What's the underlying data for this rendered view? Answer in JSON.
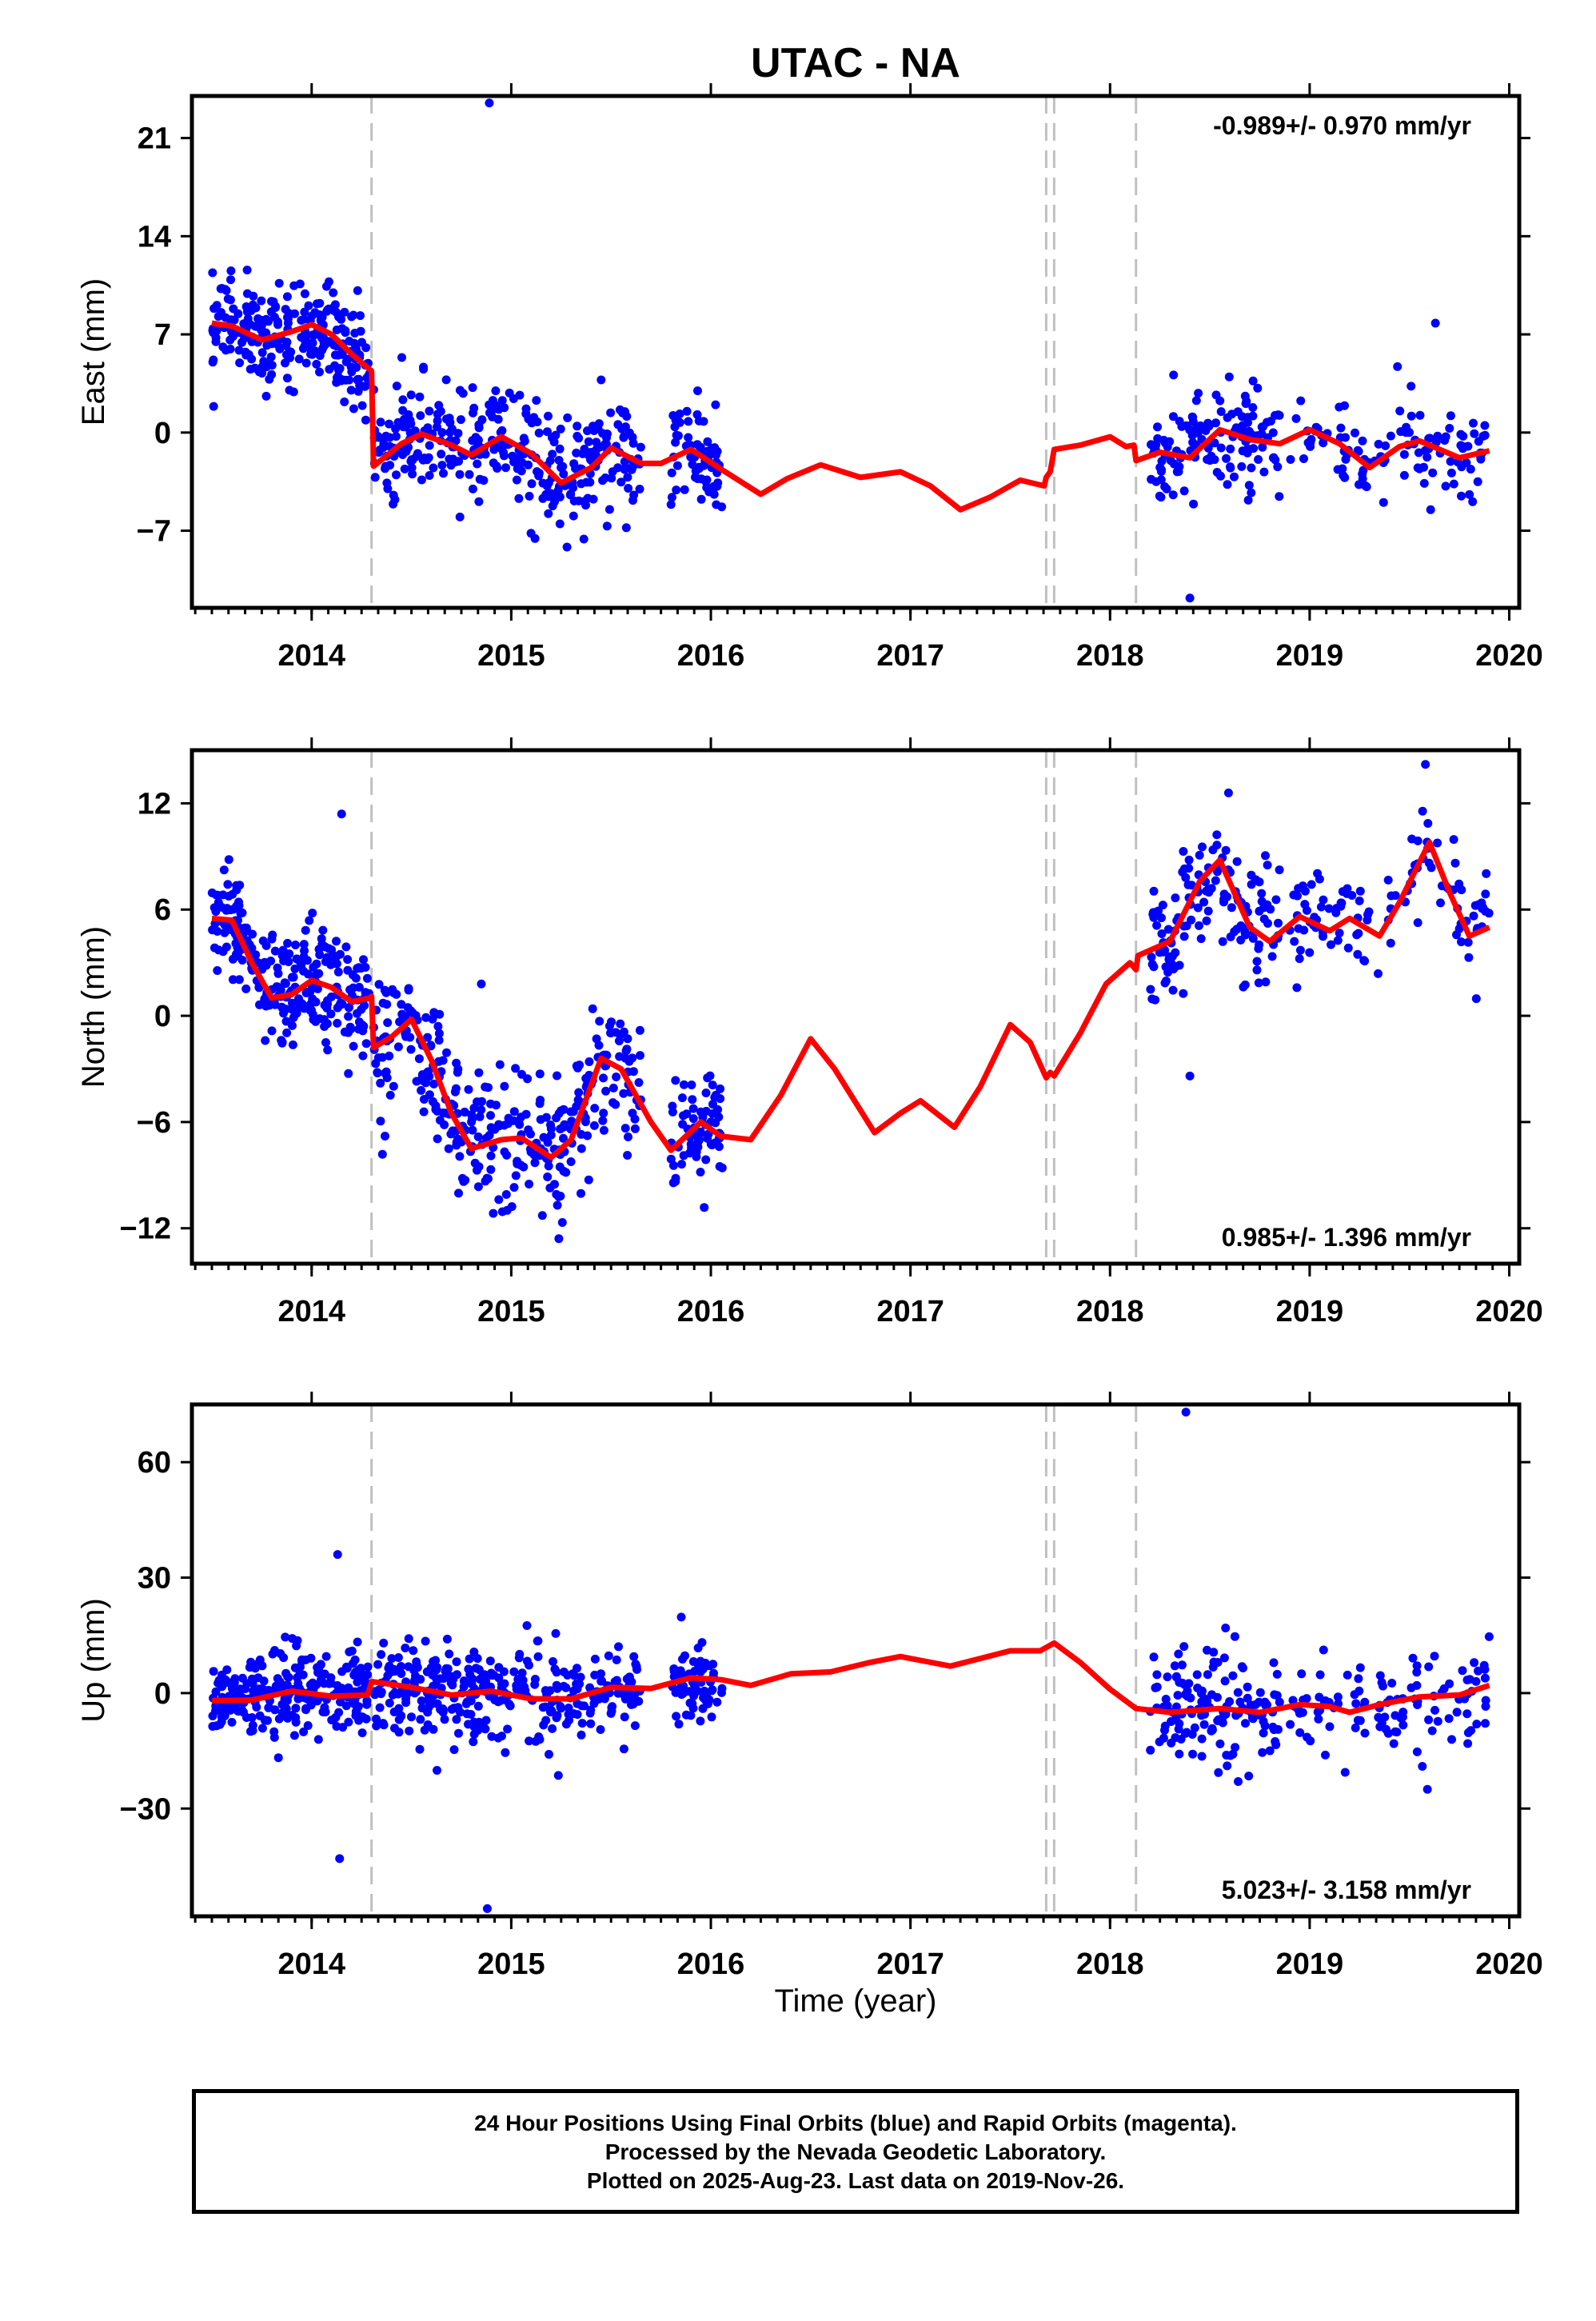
{
  "title": "UTAC - NA",
  "xlabel": "Time (year)",
  "footer": {
    "line1": "24 Hour Positions Using Final Orbits (blue) and Rapid Orbits (magenta).",
    "line2": "Processed by the Nevada Geodetic Laboratory.",
    "line3": "Plotted on 2025-Aug-23. Last data on 2019-Nov-26."
  },
  "colors": {
    "data": "#0000ff",
    "model": "#ff0000",
    "breaks": "#c0c0c0"
  },
  "chart_data": [
    {
      "type": "scatter",
      "component": "east",
      "ylabel": "East (mm)",
      "rate": "-0.989+/- 0.970 mm/yr",
      "rate_position": "top-right",
      "xlim": [
        2013.4,
        2020.05
      ],
      "ylim": [
        -12.5,
        24
      ],
      "yticks": [
        21,
        14,
        7,
        0,
        -7
      ],
      "ytick_labels": [
        "21",
        "14",
        "7",
        "0",
        "−7"
      ],
      "xticks": [
        2014,
        2015,
        2016,
        2017,
        2018,
        2019,
        2020
      ],
      "breaks": [
        2014.3,
        2017.68,
        2017.72,
        2018.13
      ],
      "outliers": [
        {
          "x": 2014.89,
          "y": 23.5
        },
        {
          "x": 2018.4,
          "y": -11.8
        },
        {
          "x": 2019.63,
          "y": 7.8
        },
        {
          "x": 2019.44,
          "y": 4.7
        }
      ],
      "model": [
        [
          2013.5,
          7.8
        ],
        [
          2013.6,
          7.6
        ],
        [
          2013.75,
          6.6
        ],
        [
          2013.9,
          7.2
        ],
        [
          2014.0,
          7.7
        ],
        [
          2014.1,
          7.0
        ],
        [
          2014.2,
          5.6
        ],
        [
          2014.29,
          4.5
        ],
        [
          2014.3,
          4.4
        ],
        [
          2014.31,
          -2.4
        ],
        [
          2014.45,
          -0.8
        ],
        [
          2014.55,
          -0.1
        ],
        [
          2014.7,
          -0.9
        ],
        [
          2014.8,
          -1.6
        ],
        [
          2014.95,
          -0.3
        ],
        [
          2015.1,
          -1.5
        ],
        [
          2015.25,
          -3.6
        ],
        [
          2015.4,
          -2.5
        ],
        [
          2015.5,
          -1.1
        ],
        [
          2015.65,
          -2.2
        ],
        [
          2015.75,
          -2.2
        ],
        [
          2015.9,
          -1.2
        ],
        [
          2016.05,
          -2.6
        ],
        [
          2016.25,
          -4.4
        ],
        [
          2016.38,
          -3.3
        ],
        [
          2016.55,
          -2.3
        ],
        [
          2016.75,
          -3.2
        ],
        [
          2016.95,
          -2.8
        ],
        [
          2017.1,
          -3.8
        ],
        [
          2017.25,
          -5.5
        ],
        [
          2017.4,
          -4.6
        ],
        [
          2017.55,
          -3.4
        ],
        [
          2017.67,
          -3.8
        ],
        [
          2017.68,
          -3.2
        ],
        [
          2017.7,
          -2.8
        ],
        [
          2017.72,
          -1.2
        ],
        [
          2017.85,
          -0.9
        ],
        [
          2018.0,
          -0.3
        ],
        [
          2018.08,
          -1.0
        ],
        [
          2018.12,
          -0.9
        ],
        [
          2018.13,
          -2.0
        ],
        [
          2018.25,
          -1.4
        ],
        [
          2018.4,
          -1.8
        ],
        [
          2018.55,
          0.2
        ],
        [
          2018.7,
          -0.5
        ],
        [
          2018.85,
          -0.8
        ],
        [
          2019.0,
          0.2
        ],
        [
          2019.15,
          -0.8
        ],
        [
          2019.3,
          -2.5
        ],
        [
          2019.45,
          -1.0
        ],
        [
          2019.55,
          -0.6
        ],
        [
          2019.75,
          -1.8
        ],
        [
          2019.9,
          -1.3
        ]
      ],
      "scatter": {
        "segments": [
          {
            "x0": 2013.5,
            "x1": 2014.29,
            "n": 260,
            "spread": 1.7
          },
          {
            "x0": 2014.31,
            "x1": 2015.65,
            "n": 330,
            "spread": 2.0
          },
          {
            "x0": 2015.8,
            "x1": 2016.06,
            "n": 70,
            "spread": 1.8
          },
          {
            "x0": 2018.2,
            "x1": 2018.85,
            "n": 140,
            "spread": 1.8
          },
          {
            "x0": 2018.9,
            "x1": 2019.9,
            "n": 110,
            "spread": 1.6
          }
        ]
      }
    },
    {
      "type": "scatter",
      "component": "north",
      "ylabel": "North (mm)",
      "rate": "0.985+/- 1.396 mm/yr",
      "rate_position": "bottom-right",
      "xlim": [
        2013.4,
        2020.05
      ],
      "ylim": [
        -14,
        15
      ],
      "yticks": [
        12,
        6,
        0,
        -6,
        -12
      ],
      "ytick_labels": [
        "12",
        "6",
        "0",
        "−6",
        "−12"
      ],
      "xticks": [
        2014,
        2015,
        2016,
        2017,
        2018,
        2019,
        2020
      ],
      "breaks": [
        2014.3,
        2017.68,
        2017.72,
        2018.13
      ],
      "outliers": [
        {
          "x": 2014.15,
          "y": 11.4
        },
        {
          "x": 2014.85,
          "y": 1.8
        },
        {
          "x": 2019.58,
          "y": 14.2
        },
        {
          "x": 2018.4,
          "y": -3.4
        }
      ],
      "model": [
        [
          2013.5,
          5.5
        ],
        [
          2013.6,
          5.4
        ],
        [
          2013.7,
          3.0
        ],
        [
          2013.8,
          1.0
        ],
        [
          2013.9,
          1.2
        ],
        [
          2014.0,
          2.0
        ],
        [
          2014.1,
          1.6
        ],
        [
          2014.2,
          0.8
        ],
        [
          2014.29,
          1.0
        ],
        [
          2014.3,
          1.1
        ],
        [
          2014.31,
          -1.8
        ],
        [
          2014.4,
          -1.2
        ],
        [
          2014.5,
          -0.2
        ],
        [
          2014.6,
          -2.5
        ],
        [
          2014.7,
          -5.5
        ],
        [
          2014.8,
          -7.5
        ],
        [
          2014.95,
          -7.0
        ],
        [
          2015.05,
          -6.9
        ],
        [
          2015.2,
          -8.0
        ],
        [
          2015.3,
          -7.0
        ],
        [
          2015.45,
          -2.4
        ],
        [
          2015.55,
          -3.0
        ],
        [
          2015.7,
          -6.0
        ],
        [
          2015.8,
          -7.6
        ],
        [
          2015.95,
          -6.0
        ],
        [
          2016.05,
          -6.8
        ],
        [
          2016.2,
          -7.0
        ],
        [
          2016.35,
          -4.5
        ],
        [
          2016.5,
          -1.3
        ],
        [
          2016.62,
          -3.0
        ],
        [
          2016.82,
          -6.6
        ],
        [
          2016.95,
          -5.5
        ],
        [
          2017.05,
          -4.8
        ],
        [
          2017.22,
          -6.3
        ],
        [
          2017.35,
          -4.0
        ],
        [
          2017.5,
          -0.5
        ],
        [
          2017.6,
          -1.5
        ],
        [
          2017.68,
          -3.5
        ],
        [
          2017.7,
          -3.2
        ],
        [
          2017.72,
          -3.4
        ],
        [
          2017.85,
          -1.0
        ],
        [
          2017.98,
          1.8
        ],
        [
          2018.1,
          3.0
        ],
        [
          2018.13,
          2.6
        ],
        [
          2018.14,
          3.4
        ],
        [
          2018.3,
          4.2
        ],
        [
          2018.45,
          7.6
        ],
        [
          2018.55,
          8.8
        ],
        [
          2018.7,
          5.0
        ],
        [
          2018.8,
          4.2
        ],
        [
          2018.95,
          5.6
        ],
        [
          2019.1,
          4.8
        ],
        [
          2019.2,
          5.5
        ],
        [
          2019.35,
          4.5
        ],
        [
          2019.45,
          6.4
        ],
        [
          2019.6,
          9.8
        ],
        [
          2019.7,
          7.0
        ],
        [
          2019.8,
          4.5
        ],
        [
          2019.9,
          5.0
        ]
      ],
      "scatter": {
        "segments": [
          {
            "x0": 2013.5,
            "x1": 2014.29,
            "n": 260,
            "spread": 1.6
          },
          {
            "x0": 2014.31,
            "x1": 2015.65,
            "n": 330,
            "spread": 1.9
          },
          {
            "x0": 2015.8,
            "x1": 2016.06,
            "n": 70,
            "spread": 1.6
          },
          {
            "x0": 2018.2,
            "x1": 2018.85,
            "n": 140,
            "spread": 1.8
          },
          {
            "x0": 2018.9,
            "x1": 2019.9,
            "n": 110,
            "spread": 1.6
          }
        ]
      }
    },
    {
      "type": "scatter",
      "component": "up",
      "ylabel": "Up (mm)",
      "rate": "5.023+/- 3.158 mm/yr",
      "rate_position": "bottom-right",
      "xlim": [
        2013.4,
        2020.05
      ],
      "ylim": [
        -58,
        75
      ],
      "yticks": [
        60,
        30,
        0,
        -30
      ],
      "ytick_labels": [
        "60",
        "30",
        "0",
        "−30"
      ],
      "xticks": [
        2014,
        2015,
        2016,
        2017,
        2018,
        2019,
        2020
      ],
      "breaks": [
        2014.3,
        2017.68,
        2017.72,
        2018.13
      ],
      "outliers": [
        {
          "x": 2014.13,
          "y": 36
        },
        {
          "x": 2014.14,
          "y": -43
        },
        {
          "x": 2014.88,
          "y": -56
        },
        {
          "x": 2018.38,
          "y": 73
        },
        {
          "x": 2019.59,
          "y": -25
        }
      ],
      "model": [
        [
          2013.5,
          -2.0
        ],
        [
          2013.7,
          -1.8
        ],
        [
          2013.9,
          0.5
        ],
        [
          2014.1,
          -0.8
        ],
        [
          2014.28,
          -0.5
        ],
        [
          2014.3,
          3.0
        ],
        [
          2014.5,
          1.5
        ],
        [
          2014.7,
          -0.5
        ],
        [
          2014.9,
          0.5
        ],
        [
          2015.1,
          -1.5
        ],
        [
          2015.3,
          -1.5
        ],
        [
          2015.5,
          1.5
        ],
        [
          2015.7,
          1.2
        ],
        [
          2015.9,
          4.0
        ],
        [
          2016.05,
          3.5
        ],
        [
          2016.2,
          2.0
        ],
        [
          2016.4,
          5.0
        ],
        [
          2016.6,
          5.5
        ],
        [
          2016.8,
          8.0
        ],
        [
          2016.95,
          9.5
        ],
        [
          2017.05,
          8.5
        ],
        [
          2017.2,
          7.0
        ],
        [
          2017.35,
          9.0
        ],
        [
          2017.5,
          11.0
        ],
        [
          2017.65,
          11.0
        ],
        [
          2017.72,
          13.0
        ],
        [
          2017.85,
          8.0
        ],
        [
          2018.0,
          1.0
        ],
        [
          2018.13,
          -4.0
        ],
        [
          2018.3,
          -5.0
        ],
        [
          2018.55,
          -4.0
        ],
        [
          2018.75,
          -5.0
        ],
        [
          2018.95,
          -3.0
        ],
        [
          2019.1,
          -3.5
        ],
        [
          2019.2,
          -5.0
        ],
        [
          2019.35,
          -3.0
        ],
        [
          2019.55,
          -1.0
        ],
        [
          2019.75,
          -0.5
        ],
        [
          2019.9,
          2.0
        ]
      ],
      "scatter": {
        "segments": [
          {
            "x0": 2013.5,
            "x1": 2014.29,
            "n": 260,
            "spread": 5.5
          },
          {
            "x0": 2014.31,
            "x1": 2015.65,
            "n": 330,
            "spread": 6.0
          },
          {
            "x0": 2015.8,
            "x1": 2016.06,
            "n": 70,
            "spread": 6.0
          },
          {
            "x0": 2018.2,
            "x1": 2018.85,
            "n": 140,
            "spread": 8.0
          },
          {
            "x0": 2018.9,
            "x1": 2019.9,
            "n": 110,
            "spread": 6.0
          }
        ]
      }
    }
  ]
}
